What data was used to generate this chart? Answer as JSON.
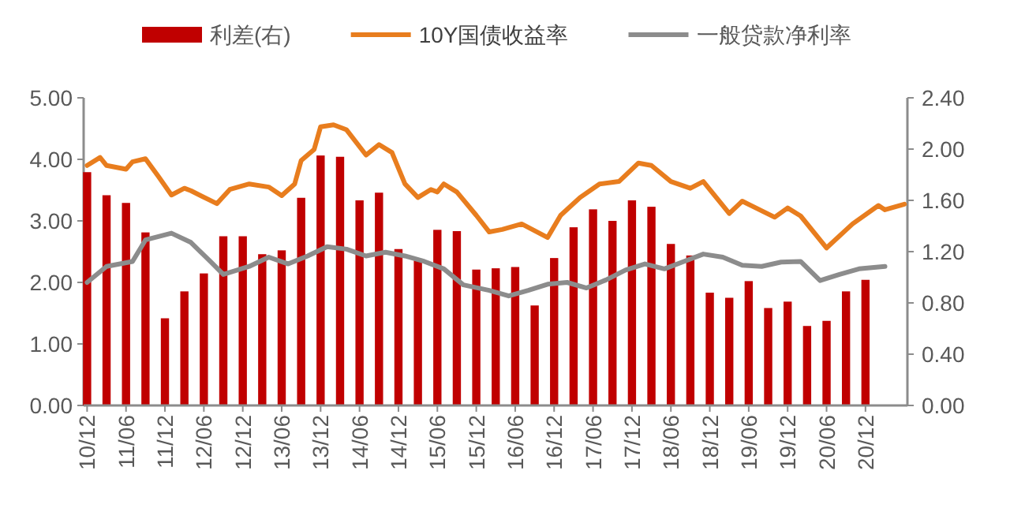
{
  "chart_data": {
    "type": "bar",
    "legend": "top",
    "grid": false,
    "xlim": [
      "2010-11-15",
      "2021-06-15"
    ],
    "xticks": [
      {
        "value": "2010-12",
        "label": "10/12"
      },
      {
        "value": "2011-06",
        "label": "11/06"
      },
      {
        "value": "2011-12",
        "label": "11/12"
      },
      {
        "value": "2012-06",
        "label": "12/06"
      },
      {
        "value": "2012-12",
        "label": "12/12"
      },
      {
        "value": "2013-06",
        "label": "13/06"
      },
      {
        "value": "2013-12",
        "label": "13/12"
      },
      {
        "value": "2014-06",
        "label": "14/06"
      },
      {
        "value": "2014-12",
        "label": "14/12"
      },
      {
        "value": "2015-06",
        "label": "15/06"
      },
      {
        "value": "2015-12",
        "label": "15/12"
      },
      {
        "value": "2016-06",
        "label": "16/06"
      },
      {
        "value": "2016-12",
        "label": "16/12"
      },
      {
        "value": "2017-06",
        "label": "17/06"
      },
      {
        "value": "2017-12",
        "label": "17/12"
      },
      {
        "value": "2018-06",
        "label": "18/06"
      },
      {
        "value": "2018-12",
        "label": "18/12"
      },
      {
        "value": "2019-06",
        "label": "19/06"
      },
      {
        "value": "2019-12",
        "label": "19/12"
      },
      {
        "value": "2020-06",
        "label": "20/06"
      },
      {
        "value": "2020-12",
        "label": "20/12"
      }
    ],
    "ylim": [
      0,
      5
    ],
    "yticks": [
      {
        "value": 0,
        "label": "0.00"
      },
      {
        "value": 1,
        "label": "1.00"
      },
      {
        "value": 2,
        "label": "2.00"
      },
      {
        "value": 3,
        "label": "3.00"
      },
      {
        "value": 4,
        "label": "4.00"
      },
      {
        "value": 5,
        "label": "5.00"
      }
    ],
    "y2lim": [
      0,
      2.4
    ],
    "y2ticks": [
      {
        "value": 0,
        "label": "0.00"
      },
      {
        "value": 0.4,
        "label": "0.40"
      },
      {
        "value": 0.8,
        "label": "0.80"
      },
      {
        "value": 1.2,
        "label": "1.20"
      },
      {
        "value": 1.6,
        "label": "1.60"
      },
      {
        "value": 2.0,
        "label": "2.00"
      },
      {
        "value": 2.4,
        "label": "2.40"
      }
    ],
    "series": [
      {
        "name": "利差(右)",
        "axis": "y2",
        "color": "#c00000",
        "x": [
          "2010-12",
          "2011-03",
          "2011-06",
          "2011-09",
          "2011-12",
          "2012-03",
          "2012-06",
          "2012-09",
          "2012-12",
          "2013-03",
          "2013-06",
          "2013-09",
          "2013-12",
          "2014-03",
          "2014-06",
          "2014-09",
          "2014-12",
          "2015-03",
          "2015-06",
          "2015-09",
          "2015-12",
          "2016-03",
          "2016-06",
          "2016-09",
          "2016-12",
          "2017-03",
          "2017-06",
          "2017-09",
          "2017-12",
          "2018-03",
          "2018-06",
          "2018-09",
          "2018-12",
          "2019-03",
          "2019-06",
          "2019-09",
          "2019-12",
          "2020-03",
          "2020-06",
          "2020-09",
          "2020-12"
        ],
        "values": [
          1.82,
          1.64,
          1.58,
          1.35,
          0.68,
          0.89,
          1.03,
          1.32,
          1.32,
          1.18,
          1.21,
          1.62,
          1.95,
          1.94,
          1.6,
          1.66,
          1.22,
          1.13,
          1.37,
          1.36,
          1.06,
          1.07,
          1.08,
          0.78,
          1.15,
          1.39,
          1.53,
          1.44,
          1.6,
          1.55,
          1.26,
          1.17,
          0.88,
          0.84,
          0.97,
          0.76,
          0.81,
          0.62,
          0.66,
          0.89,
          0.98
        ]
      },
      {
        "name": "10Y国债收益率",
        "type": "line",
        "color": "#e87d1e",
        "x": [
          "2010-12",
          "2011-02",
          "2011-03",
          "2011-06",
          "2011-07",
          "2011-09",
          "2011-11",
          "2012-01",
          "2012-03",
          "2012-04",
          "2012-08",
          "2012-10",
          "2013-01",
          "2013-04",
          "2013-06",
          "2013-08",
          "2013-09",
          "2013-11",
          "2013-12",
          "2014-02",
          "2014-04",
          "2014-07",
          "2014-09",
          "2014-11",
          "2015-01",
          "2015-03",
          "2015-05",
          "2015-06",
          "2015-07",
          "2015-09",
          "2015-12",
          "2016-02",
          "2016-04",
          "2016-07",
          "2016-11",
          "2017-01",
          "2017-04",
          "2017-07",
          "2017-10",
          "2018-01",
          "2018-03",
          "2018-06",
          "2018-09",
          "2018-11",
          "2019-03",
          "2019-05",
          "2019-10",
          "2019-12",
          "2020-02",
          "2020-06",
          "2020-10",
          "2021-02",
          "2021-03",
          "2021-06"
        ],
        "values": [
          3.9,
          4.03,
          3.9,
          3.84,
          3.96,
          4.01,
          3.72,
          3.42,
          3.53,
          3.49,
          3.28,
          3.51,
          3.6,
          3.55,
          3.41,
          3.6,
          3.98,
          4.16,
          4.53,
          4.56,
          4.48,
          4.07,
          4.24,
          4.11,
          3.6,
          3.38,
          3.51,
          3.47,
          3.6,
          3.47,
          3.09,
          2.82,
          2.86,
          2.95,
          2.73,
          3.09,
          3.38,
          3.6,
          3.64,
          3.94,
          3.9,
          3.64,
          3.53,
          3.64,
          3.12,
          3.32,
          3.06,
          3.21,
          3.08,
          2.56,
          2.95,
          3.25,
          3.18,
          3.27
        ]
      },
      {
        "name": "一般贷款净利率",
        "type": "line",
        "color": "#8c8c8c",
        "x": [
          "2010-12",
          "2011-03",
          "2011-07",
          "2011-09",
          "2012-01",
          "2012-04",
          "2012-07",
          "2012-09",
          "2013-01",
          "2013-04",
          "2013-07",
          "2013-10",
          "2014-01",
          "2014-04",
          "2014-07",
          "2014-10",
          "2015-01",
          "2015-04",
          "2015-07",
          "2015-10",
          "2016-02",
          "2016-05",
          "2016-08",
          "2016-11",
          "2017-02",
          "2017-05",
          "2017-08",
          "2017-11",
          "2018-02",
          "2018-05",
          "2018-08",
          "2018-11",
          "2019-02",
          "2019-05",
          "2019-08",
          "2019-11",
          "2020-02",
          "2020-05",
          "2020-08",
          "2020-11",
          "2021-03"
        ],
        "values": [
          2.0,
          2.26,
          2.34,
          2.69,
          2.8,
          2.65,
          2.34,
          2.13,
          2.26,
          2.41,
          2.3,
          2.43,
          2.58,
          2.54,
          2.43,
          2.49,
          2.43,
          2.34,
          2.22,
          1.96,
          1.87,
          1.78,
          1.87,
          1.97,
          2.0,
          1.91,
          2.04,
          2.2,
          2.3,
          2.22,
          2.34,
          2.46,
          2.41,
          2.28,
          2.26,
          2.33,
          2.34,
          2.03,
          2.13,
          2.22,
          2.26
        ]
      }
    ]
  }
}
